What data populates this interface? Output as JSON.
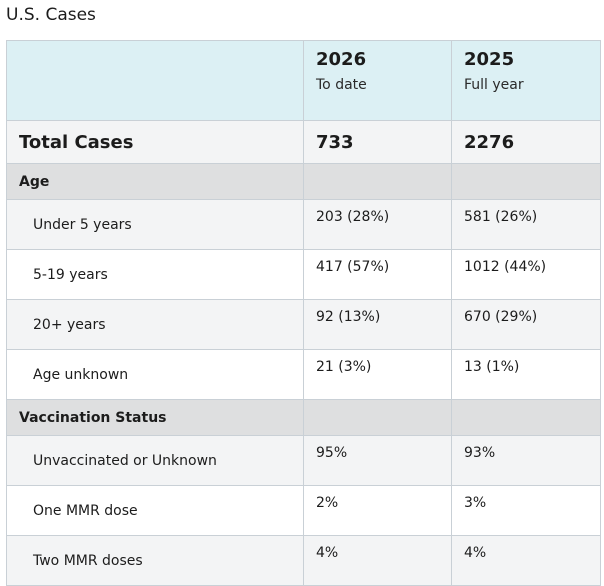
{
  "title": "U.S. Cases",
  "columns": [
    {
      "year": "2026",
      "period": "To date"
    },
    {
      "year": "2025",
      "period": "Full year"
    }
  ],
  "total": {
    "label": "Total Cases",
    "values": [
      "733",
      "2276"
    ]
  },
  "sections": [
    {
      "label": "Age",
      "rows": [
        {
          "label": "Under 5 years",
          "values": [
            "203 (28%)",
            "581 (26%)"
          ]
        },
        {
          "label": "5-19 years",
          "values": [
            "417 (57%)",
            "1012 (44%)"
          ]
        },
        {
          "label": "20+ years",
          "values": [
            "92 (13%)",
            "670 (29%)"
          ]
        },
        {
          "label": "Age unknown",
          "values": [
            "21 (3%)",
            "13 (1%)"
          ]
        }
      ]
    },
    {
      "label": "Vaccination Status",
      "rows": [
        {
          "label": "Unvaccinated or Unknown",
          "values": [
            "95%",
            "93%"
          ]
        },
        {
          "label": "One MMR dose",
          "values": [
            "2%",
            "3%"
          ]
        },
        {
          "label": "Two MMR doses",
          "values": [
            "4%",
            "4%"
          ]
        }
      ]
    }
  ]
}
